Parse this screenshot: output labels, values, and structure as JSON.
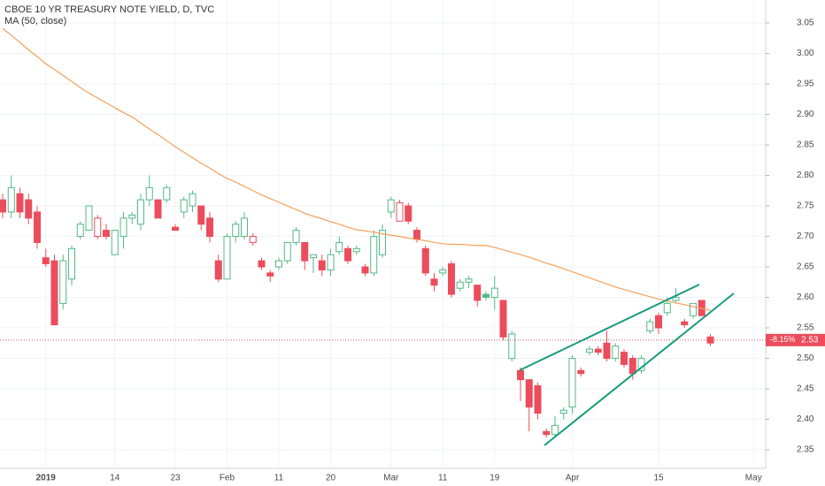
{
  "chart_data": {
    "type": "candlestick",
    "title": "CBOE 10 YR TREASURY NOTE YIELD, D, TVC",
    "up_color": "#53b987",
    "down_color": "#eb4d5c",
    "categories": [
      null,
      null,
      null,
      null,
      null,
      "2019",
      null,
      null,
      null,
      null,
      null,
      null,
      null,
      "14",
      null,
      null,
      null,
      null,
      null,
      null,
      "23",
      null,
      null,
      null,
      null,
      null,
      "Feb",
      null,
      null,
      null,
      null,
      null,
      "11",
      null,
      null,
      null,
      null,
      null,
      "20",
      null,
      null,
      null,
      null,
      null,
      null,
      "Mar",
      null,
      null,
      null,
      null,
      null,
      "11",
      null,
      null,
      null,
      null,
      null,
      "19",
      null,
      null,
      null,
      null,
      null,
      null,
      null,
      null,
      "Apr",
      null,
      null,
      null,
      null,
      null,
      null,
      null,
      null,
      null,
      "15",
      null,
      null,
      null,
      null,
      null,
      null,
      null,
      null,
      null,
      null,
      "May",
      null
    ],
    "open": [
      2.76,
      2.74,
      2.77,
      2.76,
      2.74,
      2.665,
      2.66,
      2.59,
      2.63,
      2.7,
      2.71,
      2.7,
      2.71,
      2.67,
      2.7,
      2.73,
      2.72,
      2.76,
      2.76,
      2.76,
      2.715,
      2.74,
      2.75,
      2.75,
      2.73,
      2.66,
      2.63,
      2.7,
      2.7,
      2.69,
      2.66,
      2.64,
      2.65,
      2.66,
      2.69,
      2.69,
      2.665,
      2.66,
      2.645,
      2.675,
      2.68,
      2.675,
      2.65,
      2.64,
      2.67,
      2.74,
      2.725,
      2.75,
      2.71,
      2.68,
      2.63,
      2.64,
      2.655,
      2.615,
      2.625,
      2.62,
      2.605,
      2.6,
      2.595,
      2.5,
      2.48,
      2.465,
      2.455,
      2.38,
      2.375,
      2.41,
      2.42,
      2.48,
      2.51,
      2.515,
      2.525,
      2.5,
      2.51,
      2.5,
      2.48,
      2.545,
      2.57,
      2.575,
      2.595,
      2.56,
      2.57,
      2.595,
      2.535,
      null,
      null,
      null,
      null,
      null,
      null
    ],
    "high": [
      2.77,
      2.8,
      2.78,
      2.77,
      2.75,
      2.68,
      2.67,
      2.67,
      2.685,
      2.725,
      2.75,
      2.735,
      2.72,
      2.71,
      2.74,
      2.74,
      2.77,
      2.8,
      2.76,
      2.785,
      2.72,
      2.765,
      2.775,
      2.75,
      2.74,
      2.67,
      2.705,
      2.725,
      2.74,
      2.705,
      2.665,
      2.645,
      2.665,
      2.69,
      2.715,
      2.69,
      2.67,
      2.67,
      2.68,
      2.7,
      2.685,
      2.685,
      2.655,
      2.71,
      2.72,
      2.765,
      2.76,
      2.755,
      2.715,
      2.685,
      2.64,
      2.65,
      2.66,
      2.63,
      2.635,
      2.62,
      2.61,
      2.635,
      2.595,
      2.545,
      2.485,
      2.465,
      2.46,
      2.385,
      2.405,
      2.42,
      2.505,
      2.485,
      2.52,
      2.52,
      2.545,
      2.525,
      2.515,
      2.505,
      2.505,
      2.565,
      2.575,
      2.6,
      2.615,
      2.565,
      2.59,
      2.595,
      2.54,
      null,
      null,
      null,
      null,
      null,
      null
    ],
    "low": [
      2.73,
      2.73,
      2.73,
      2.72,
      2.68,
      2.65,
      2.555,
      2.58,
      2.62,
      2.695,
      2.71,
      2.695,
      2.695,
      2.67,
      2.68,
      2.72,
      2.71,
      2.75,
      2.73,
      2.755,
      2.71,
      2.73,
      2.74,
      2.71,
      2.69,
      2.625,
      2.63,
      2.69,
      2.695,
      2.685,
      2.645,
      2.625,
      2.645,
      2.655,
      2.685,
      2.645,
      2.64,
      2.635,
      2.635,
      2.67,
      2.655,
      2.67,
      2.635,
      2.635,
      2.665,
      2.73,
      2.725,
      2.72,
      2.69,
      2.635,
      2.61,
      2.635,
      2.6,
      2.61,
      2.615,
      2.585,
      2.595,
      2.58,
      2.53,
      2.495,
      2.43,
      2.38,
      2.4,
      2.37,
      2.37,
      2.4,
      2.41,
      2.47,
      2.505,
      2.505,
      2.495,
      2.495,
      2.485,
      2.465,
      2.475,
      2.54,
      2.54,
      2.57,
      2.59,
      2.55,
      2.565,
      2.57,
      2.52,
      null,
      null,
      null,
      null,
      null,
      null
    ],
    "close": [
      2.74,
      2.78,
      2.74,
      2.73,
      2.69,
      2.655,
      2.555,
      2.66,
      2.68,
      2.72,
      2.75,
      2.73,
      2.7,
      2.71,
      2.73,
      2.735,
      2.76,
      2.78,
      2.73,
      2.78,
      2.71,
      2.76,
      2.77,
      2.72,
      2.7,
      2.63,
      2.7,
      2.72,
      2.73,
      2.7,
      2.65,
      2.635,
      2.66,
      2.69,
      2.71,
      2.66,
      2.67,
      2.645,
      2.67,
      2.69,
      2.66,
      2.68,
      2.64,
      2.7,
      2.71,
      2.76,
      2.755,
      2.725,
      2.695,
      2.64,
      2.62,
      2.645,
      2.605,
      2.625,
      2.63,
      2.595,
      2.6,
      2.615,
      2.535,
      2.54,
      2.465,
      2.42,
      2.41,
      2.375,
      2.39,
      2.415,
      2.5,
      2.475,
      2.515,
      2.51,
      2.5,
      2.52,
      2.49,
      2.475,
      2.5,
      2.56,
      2.55,
      2.59,
      2.6,
      2.555,
      2.59,
      2.57,
      2.525,
      null,
      null,
      null,
      null,
      null,
      null
    ],
    "ma": {
      "name": "MA (50, close)",
      "color": "#f5a05a",
      "values": [
        3.041,
        3.03,
        3.018,
        3.006,
        2.995,
        2.983,
        2.974,
        2.964,
        2.954,
        2.944,
        2.935,
        2.927,
        2.919,
        2.911,
        2.903,
        2.896,
        2.886,
        2.876,
        2.867,
        2.857,
        2.847,
        2.838,
        2.829,
        2.82,
        2.812,
        2.803,
        2.795,
        2.789,
        2.782,
        2.775,
        2.768,
        2.762,
        2.756,
        2.75,
        2.744,
        2.738,
        2.733,
        2.729,
        2.724,
        2.72,
        2.715,
        2.711,
        2.709,
        2.707,
        2.704,
        2.702,
        2.7,
        2.697,
        2.695,
        2.693,
        2.69,
        2.688,
        2.687,
        2.687,
        2.686,
        2.685,
        2.685,
        2.682,
        2.678,
        2.674,
        2.67,
        2.666,
        2.661,
        2.656,
        2.652,
        2.647,
        2.642,
        2.637,
        2.632,
        2.627,
        2.622,
        2.617,
        2.613,
        2.609,
        2.605,
        2.601,
        2.597,
        2.594,
        2.591,
        2.588,
        2.585,
        2.582,
        2.579,
        null,
        null,
        null,
        null,
        null,
        null
      ]
    },
    "ylim": [
      2.3196,
      3.0877
    ],
    "yticks": [
      2.35,
      {
        "value": 2.4,
        "label": "2.40"
      },
      2.45,
      {
        "value": 2.5,
        "label": "2.50"
      },
      2.55,
      {
        "value": 2.6,
        "label": "2.60"
      },
      2.65,
      {
        "value": 2.7,
        "label": "2.70"
      },
      2.75,
      {
        "value": 2.8,
        "label": "2.80"
      },
      2.85,
      {
        "value": 2.9,
        "label": "2.90"
      },
      2.95,
      {
        "value": 3,
        "label": "3.00"
      },
      3.05
    ],
    "last_price": 2.53,
    "last_change": "-8.15%",
    "grid": true
  }
}
